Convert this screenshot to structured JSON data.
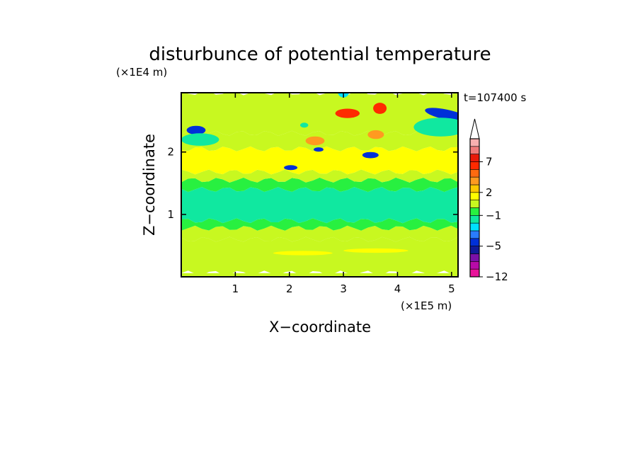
{
  "chart_data": {
    "type": "heatmap",
    "title": "disturbunce of potential temperature",
    "time_label": "t=107400 s",
    "xlabel": "X−coordinate",
    "ylabel": "Z−coordinate",
    "x_unit": "(×1E5 m)",
    "y_unit": "(×1E4 m)",
    "xlim": [
      0,
      5.12
    ],
    "ylim": [
      0,
      2.95
    ],
    "x_ticks": [
      "1",
      "2",
      "3",
      "4",
      "5"
    ],
    "y_ticks": [
      "1",
      "2"
    ],
    "x_tick_values": [
      1,
      2,
      3,
      4,
      5
    ],
    "y_tick_values": [
      1,
      2
    ],
    "colorbar": {
      "tick_labels": [
        "7",
        "2",
        "−1",
        "−5",
        "−12"
      ],
      "tick_levels": [
        7,
        2,
        -1,
        -5,
        -12
      ],
      "levels": [
        -12,
        -10,
        -8,
        -6,
        -5,
        -4,
        -3,
        -2,
        -1,
        0,
        1,
        2,
        3,
        4,
        5,
        7,
        9,
        11,
        13
      ],
      "colors": [
        "#e8129a",
        "#b80aa8",
        "#7a10a8",
        "#101a9a",
        "#0030d8",
        "#2a7cff",
        "#00e0ff",
        "#10e8a0",
        "#28f040",
        "#c8f820",
        "#ffff00",
        "#ffc800",
        "#ff9a20",
        "#ff6a10",
        "#ff2a00",
        "#e81a0a",
        "#f07a7a",
        "#f8b0b0"
      ],
      "extend": "max"
    },
    "features": [
      {
        "x": 0.1,
        "z": 2.35,
        "w": 0.35,
        "h": 0.14,
        "value": -5
      },
      {
        "x": 0.0,
        "z": 2.2,
        "w": 0.7,
        "h": 0.2,
        "value": -1.5
      },
      {
        "x": 4.5,
        "z": 2.6,
        "w": 0.8,
        "h": 0.16,
        "value": -5
      },
      {
        "x": 4.3,
        "z": 2.4,
        "w": 1.0,
        "h": 0.3,
        "value": -1.5
      },
      {
        "x": 2.85,
        "z": 2.62,
        "w": 0.45,
        "h": 0.15,
        "value": 6
      },
      {
        "x": 3.55,
        "z": 2.7,
        "w": 0.25,
        "h": 0.18,
        "value": 6
      },
      {
        "x": 3.45,
        "z": 2.28,
        "w": 0.3,
        "h": 0.14,
        "value": 3
      },
      {
        "x": 2.3,
        "z": 2.18,
        "w": 0.35,
        "h": 0.14,
        "value": 3
      },
      {
        "x": 3.35,
        "z": 1.95,
        "w": 0.3,
        "h": 0.1,
        "value": -5
      },
      {
        "x": 1.9,
        "z": 1.75,
        "w": 0.25,
        "h": 0.08,
        "value": -5
      },
      {
        "x": 2.45,
        "z": 2.04,
        "w": 0.18,
        "h": 0.07,
        "value": -5
      },
      {
        "x": 2.2,
        "z": 2.43,
        "w": 0.15,
        "h": 0.08,
        "value": -1.5
      },
      {
        "x": 2.9,
        "z": 2.95,
        "w": 0.2,
        "h": 0.15,
        "value": -3
      },
      {
        "x": 1.7,
        "z": 0.38,
        "w": 1.1,
        "h": 0.07,
        "value": 1.5
      },
      {
        "x": 3.0,
        "z": 0.42,
        "w": 1.2,
        "h": 0.07,
        "value": 1.5
      }
    ]
  }
}
